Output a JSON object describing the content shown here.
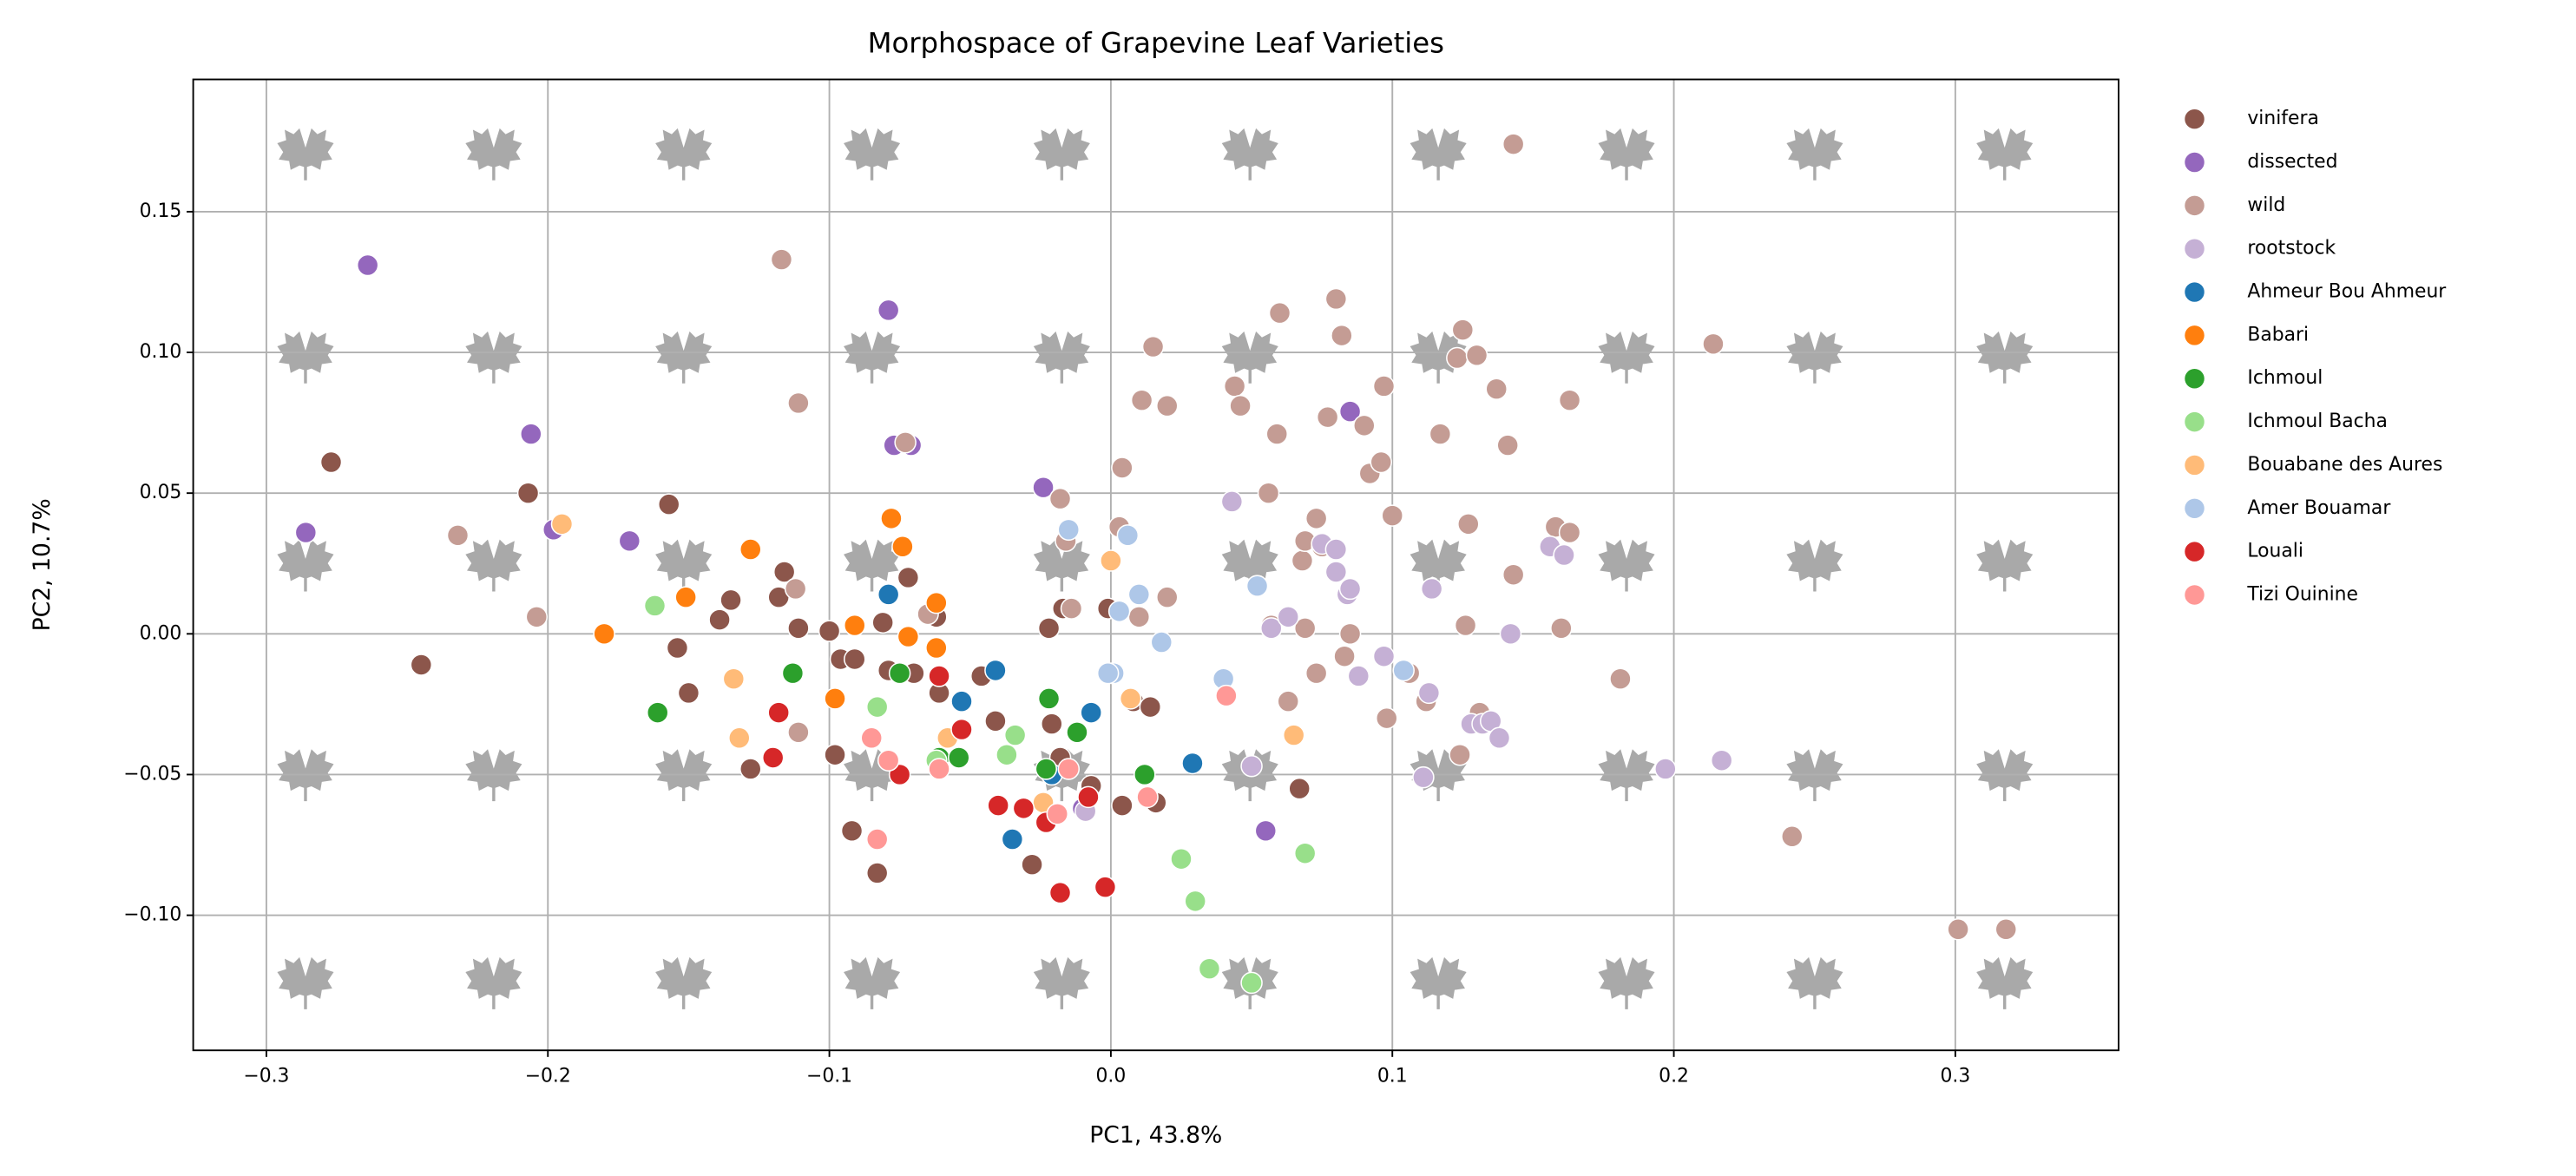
{
  "chart_data": {
    "type": "scatter",
    "title": "Morphospace of Grapevine Leaf Varieties",
    "x_label": "PC1, 43.8%",
    "y_label": "PC2, 10.7%",
    "xlim": [
      -0.326,
      0.358
    ],
    "ylim": [
      -0.148,
      0.197
    ],
    "xticks": [
      {
        "value": -0.3,
        "label": "−0.3"
      },
      {
        "value": -0.2,
        "label": "−0.2"
      },
      {
        "value": -0.1,
        "label": "−0.1"
      },
      {
        "value": 0,
        "label": "0.0"
      },
      0.1,
      0.2,
      0.3
    ],
    "yticks": [
      {
        "value": -0.1,
        "label": "−0.10"
      },
      {
        "value": -0.05,
        "label": "−0.05"
      },
      {
        "value": 0,
        "label": "0.00"
      },
      {
        "value": 0.05,
        "label": "0.05"
      },
      {
        "value": 0.1,
        "label": "0.10"
      },
      {
        "value": 0.15,
        "label": "0.15"
      }
    ],
    "grid": true,
    "legend": "outside-right",
    "series": [
      {
        "name": "vinifera",
        "color": "#8c564b",
        "x": [
          -0.277,
          -0.245,
          -0.207,
          -0.157,
          -0.154,
          -0.15,
          -0.139,
          -0.135,
          -0.128,
          -0.118,
          -0.116,
          -0.111,
          -0.1,
          -0.098,
          -0.096,
          -0.092,
          -0.091,
          -0.083,
          -0.081,
          -0.079,
          -0.072,
          -0.07,
          -0.062,
          -0.061,
          -0.046,
          -0.041,
          -0.028,
          -0.022,
          -0.021,
          -0.018,
          -0.017,
          -0.007,
          -0.001,
          0.004,
          0.008,
          0.014,
          0.016,
          0.067
        ],
        "y": [
          0.061,
          -0.011,
          0.05,
          0.046,
          -0.005,
          -0.021,
          0.005,
          0.012,
          -0.048,
          0.013,
          0.022,
          0.002,
          0.001,
          -0.043,
          -0.009,
          -0.07,
          -0.009,
          -0.085,
          0.004,
          -0.013,
          0.02,
          -0.014,
          0.006,
          -0.021,
          -0.015,
          -0.031,
          -0.082,
          0.002,
          -0.032,
          -0.044,
          0.009,
          -0.054,
          0.009,
          -0.061,
          -0.024,
          -0.026,
          -0.06,
          -0.055
        ]
      },
      {
        "name": "dissected",
        "color": "#9467bd",
        "x": [
          -0.264,
          -0.286,
          -0.206,
          -0.198,
          -0.171,
          -0.079,
          -0.077,
          -0.071,
          -0.024,
          0.085,
          0.055,
          -0.01
        ],
        "y": [
          0.131,
          0.036,
          0.071,
          0.037,
          0.033,
          0.115,
          0.067,
          0.067,
          0.052,
          0.079,
          -0.07,
          -0.062
        ]
      },
      {
        "name": "wild",
        "color": "#c49c94",
        "x": [
          -0.232,
          -0.204,
          -0.117,
          -0.111,
          -0.112,
          -0.111,
          -0.073,
          -0.065,
          -0.018,
          -0.016,
          -0.014,
          0.004,
          0.003,
          0.01,
          0.015,
          0.011,
          0.02,
          0.02,
          0.044,
          0.046,
          0.056,
          0.06,
          0.059,
          0.068,
          0.069,
          0.069,
          0.073,
          0.075,
          0.073,
          0.077,
          0.08,
          0.082,
          0.083,
          0.085,
          0.09,
          0.092,
          0.096,
          0.097,
          0.098,
          0.1,
          0.106,
          0.112,
          0.117,
          0.123,
          0.125,
          0.13,
          0.126,
          0.127,
          0.137,
          0.141,
          0.143,
          0.143,
          0.158,
          0.16,
          0.163,
          0.163,
          0.181,
          0.214,
          0.242,
          0.301,
          0.318,
          0.124,
          0.131,
          0.063,
          0.057
        ],
        "y": [
          0.035,
          0.006,
          0.133,
          0.082,
          0.016,
          -0.035,
          0.068,
          0.007,
          0.048,
          0.033,
          0.009,
          0.059,
          0.038,
          0.006,
          0.102,
          0.083,
          0.081,
          0.013,
          0.088,
          0.081,
          0.05,
          0.114,
          0.071,
          0.026,
          0.033,
          0.002,
          0.041,
          0.031,
          -0.014,
          0.077,
          0.119,
          0.106,
          -0.008,
          0.0,
          0.074,
          0.057,
          0.061,
          0.088,
          -0.03,
          0.042,
          -0.014,
          -0.024,
          0.071,
          0.098,
          0.108,
          0.099,
          0.003,
          0.039,
          0.087,
          0.067,
          0.021,
          0.174,
          0.038,
          0.002,
          0.036,
          0.083,
          -0.016,
          0.103,
          -0.072,
          -0.105,
          -0.105,
          -0.043,
          -0.028,
          -0.024,
          0.003
        ]
      },
      {
        "name": "rootstock",
        "color": "#c5b0d5",
        "x": [
          0.043,
          0.057,
          0.063,
          0.075,
          0.08,
          0.08,
          0.084,
          0.085,
          0.088,
          0.097,
          0.111,
          0.113,
          0.114,
          0.128,
          0.132,
          0.135,
          0.138,
          0.142,
          0.156,
          0.161,
          0.197,
          0.217,
          0.05,
          -0.009
        ],
        "y": [
          0.047,
          0.002,
          0.006,
          0.032,
          0.03,
          0.022,
          0.014,
          0.016,
          -0.015,
          -0.008,
          -0.051,
          -0.021,
          0.016,
          -0.032,
          -0.032,
          -0.031,
          -0.037,
          0.0,
          0.031,
          0.028,
          -0.048,
          -0.045,
          -0.047,
          -0.063
        ]
      },
      {
        "name": "Ahmeur Bou Ahmeur",
        "color": "#1f77b4",
        "x": [
          -0.079,
          -0.053,
          -0.041,
          -0.035,
          -0.021,
          -0.007,
          0.029
        ],
        "y": [
          0.014,
          -0.024,
          -0.013,
          -0.073,
          -0.05,
          -0.028,
          -0.046
        ]
      },
      {
        "name": "Babari",
        "color": "#ff7f0e",
        "x": [
          -0.18,
          -0.151,
          -0.128,
          -0.098,
          -0.091,
          -0.078,
          -0.074,
          -0.072,
          -0.062,
          -0.062
        ],
        "y": [
          0.0,
          0.013,
          0.03,
          -0.023,
          0.003,
          0.041,
          0.031,
          -0.001,
          -0.005,
          0.011
        ]
      },
      {
        "name": "Ichmoul",
        "color": "#2ca02c",
        "x": [
          -0.161,
          -0.113,
          -0.075,
          -0.061,
          -0.054,
          -0.022,
          -0.023,
          -0.012,
          0.012
        ],
        "y": [
          -0.028,
          -0.014,
          -0.014,
          -0.044,
          -0.044,
          -0.023,
          -0.048,
          -0.035,
          -0.05
        ]
      },
      {
        "name": "Ichmoul Bacha",
        "color": "#98df8a",
        "x": [
          -0.162,
          -0.083,
          -0.062,
          -0.037,
          -0.034,
          0.025,
          0.03,
          0.035,
          0.05,
          0.069
        ],
        "y": [
          0.01,
          -0.026,
          -0.045,
          -0.043,
          -0.036,
          -0.08,
          -0.095,
          -0.119,
          -0.124,
          -0.078
        ]
      },
      {
        "name": "Bouabane des Aures",
        "color": "#ffbb78",
        "x": [
          -0.195,
          -0.134,
          -0.132,
          -0.058,
          -0.024,
          0.0,
          0.007,
          0.065
        ],
        "y": [
          0.039,
          -0.016,
          -0.037,
          -0.037,
          -0.06,
          0.026,
          -0.023,
          -0.036
        ]
      },
      {
        "name": "Amer Bouamar",
        "color": "#aec7e8",
        "x": [
          -0.015,
          0.006,
          0.003,
          0.01,
          0.018,
          0.001,
          0.04,
          0.052,
          0.104,
          -0.001
        ],
        "y": [
          0.037,
          0.035,
          0.008,
          0.014,
          -0.003,
          -0.014,
          -0.016,
          0.017,
          -0.013,
          -0.014
        ]
      },
      {
        "name": "Louali",
        "color": "#d62728",
        "x": [
          -0.118,
          -0.12,
          -0.075,
          -0.061,
          -0.053,
          -0.04,
          -0.031,
          -0.023,
          -0.018,
          -0.008,
          -0.002
        ],
        "y": [
          -0.028,
          -0.044,
          -0.05,
          -0.015,
          -0.034,
          -0.061,
          -0.062,
          -0.067,
          -0.092,
          -0.058,
          -0.09
        ]
      },
      {
        "name": "Tizi Ouinine",
        "color": "#ff9896",
        "x": [
          -0.085,
          -0.083,
          -0.079,
          -0.061,
          -0.019,
          -0.015,
          0.013,
          0.041
        ],
        "y": [
          -0.037,
          -0.073,
          -0.045,
          -0.048,
          -0.064,
          -0.048,
          -0.058,
          -0.022
        ]
      }
    ]
  }
}
